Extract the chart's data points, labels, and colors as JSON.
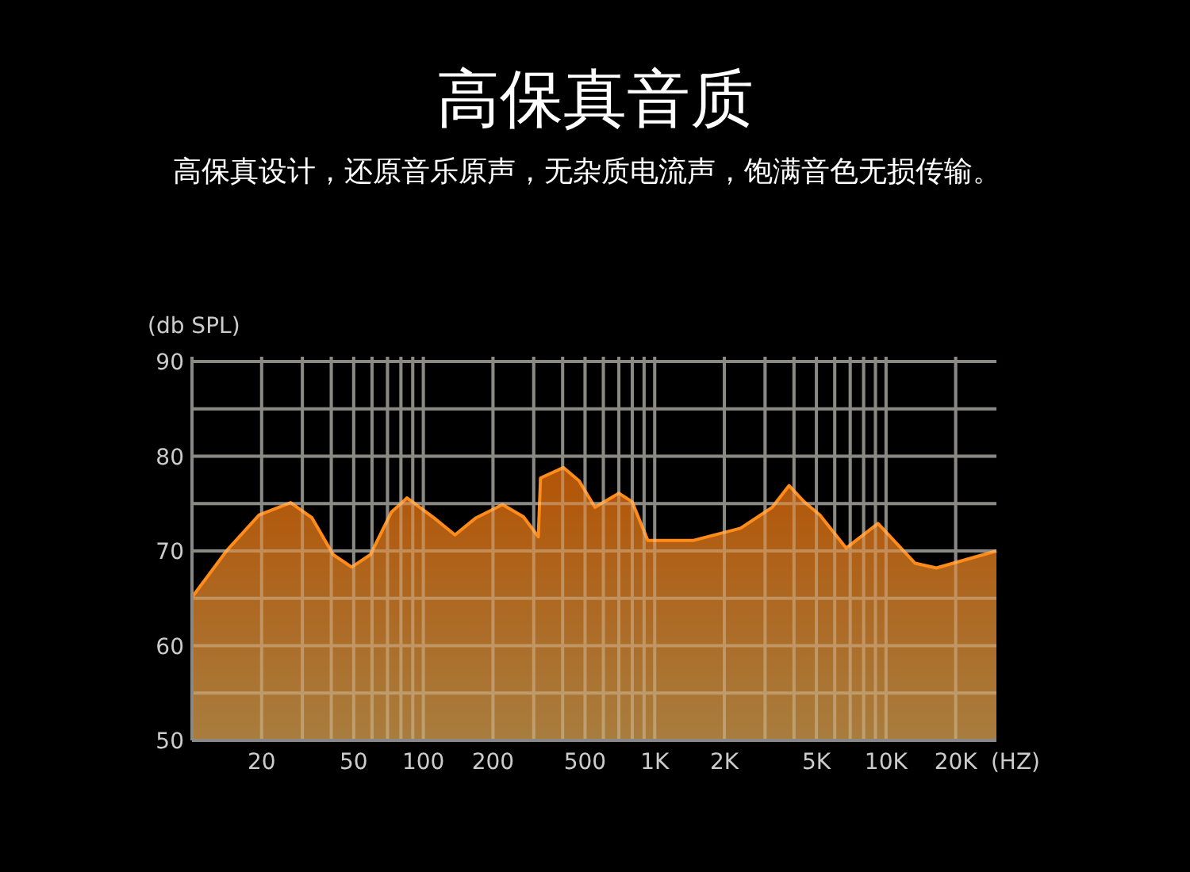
{
  "chart_data": {
    "type": "area",
    "title": "高保真音质",
    "subtitle": "高保真设计，还原音乐原声，无杂质电流声，饱满音色无损传输。",
    "ylabel": "(db SPL)",
    "xlabel": "(HZ)",
    "log": "x",
    "grid": true,
    "xlim": [
      10,
      30000
    ],
    "xticks": [
      {
        "value": 20,
        "label": "20"
      },
      {
        "value": 30,
        "label": null
      },
      {
        "value": 40,
        "label": null
      },
      {
        "value": 50,
        "label": "50"
      },
      {
        "value": 60,
        "label": null
      },
      {
        "value": 70,
        "label": null
      },
      {
        "value": 80,
        "label": null
      },
      {
        "value": 90,
        "label": null
      },
      {
        "value": 100,
        "label": "100"
      },
      {
        "value": 200,
        "label": "200"
      },
      {
        "value": 300,
        "label": null
      },
      {
        "value": 400,
        "label": null
      },
      {
        "value": 500,
        "label": "500"
      },
      {
        "value": 600,
        "label": null
      },
      {
        "value": 700,
        "label": null
      },
      {
        "value": 800,
        "label": null
      },
      {
        "value": 900,
        "label": null
      },
      {
        "value": 1000,
        "label": "1K"
      },
      {
        "value": 2000,
        "label": "2K"
      },
      {
        "value": 3000,
        "label": null
      },
      {
        "value": 4000,
        "label": null
      },
      {
        "value": 5000,
        "label": "5K"
      },
      {
        "value": 6000,
        "label": null
      },
      {
        "value": 7000,
        "label": null
      },
      {
        "value": 8000,
        "label": null
      },
      {
        "value": 9000,
        "label": null
      },
      {
        "value": 10000,
        "label": "10K"
      },
      {
        "value": 20000,
        "label": "20K"
      }
    ],
    "ylim": [
      50,
      90
    ],
    "yticks": [
      50,
      {
        "value": 55,
        "label": null
      },
      60,
      {
        "value": 65,
        "label": null
      },
      70,
      {
        "value": 75,
        "label": null
      },
      80,
      {
        "value": 85,
        "label": null
      },
      90
    ],
    "series": [
      {
        "color": "#ff8c1a",
        "x": [
          10,
          14.2,
          19.5,
          26.7,
          33,
          40.8,
          49,
          59,
          72.8,
          85,
          111,
          137,
          169,
          220,
          271,
          314,
          321,
          403,
          471,
          552,
          700,
          798,
          934,
          1462,
          2350,
          3220,
          3810,
          4420,
          5170,
          6730,
          9230,
          13360,
          16500,
          30000
        ],
        "values": [
          65.1,
          70.1,
          73.8,
          75.1,
          73.5,
          69.6,
          68.3,
          69.6,
          74.1,
          75.6,
          73.5,
          71.7,
          73.5,
          74.9,
          73.6,
          71.5,
          77.7,
          78.8,
          77.4,
          74.6,
          76.1,
          75.2,
          71.1,
          71.1,
          72.4,
          74.6,
          76.9,
          75.2,
          73.8,
          70.3,
          72.9,
          68.7,
          68.2,
          70.0
        ]
      }
    ]
  }
}
